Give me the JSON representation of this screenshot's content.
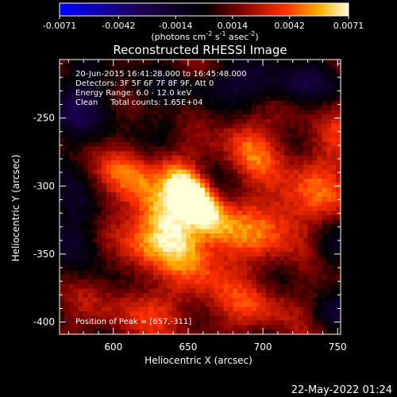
{
  "chart_data": {
    "type": "heatmap",
    "title": "Reconstructed RHESSI Image",
    "xlabel": "Heliocentric X (arcsec)",
    "ylabel": "Heliocentric Y (arcsec)",
    "xlim": [
      564,
      752
    ],
    "ylim": [
      -409,
      -207
    ],
    "x_ticks": [
      600,
      650,
      700,
      750
    ],
    "y_ticks": [
      -250,
      -300,
      -350,
      -400
    ],
    "colorbar": {
      "min": -0.0071,
      "max": 0.0071,
      "ticks": [
        "-0.0071",
        "-0.0042",
        "-0.0014",
        "0.0014",
        "0.0042",
        "0.0071"
      ],
      "unit_text": "(photons cm",
      "unit_sup1": "-2",
      "unit_mid": " s",
      "unit_sup2": "-1",
      "unit_end": " asec",
      "unit_sup3": "-2",
      "unit_close": ")"
    },
    "annotations": [
      "20-Jun-2015 16:41:28.000 to 16:45:48.000",
      "Detectors: 3F 5F 6F 7F 8F 9F, Att 0",
      "Energy Range: 6.0 - 12.0 keV",
      "Clean     Total counts: 1.65E+04"
    ],
    "peak_label": "Position of Peak = [657,-311]",
    "peak": {
      "x": 657,
      "y": -311,
      "value": 0.0071
    },
    "sources": [
      {
        "x": 655,
        "y": -308,
        "sx": 9,
        "sy": 20,
        "angle": -35,
        "amp": 0.0071
      },
      {
        "x": 640,
        "y": -330,
        "sx": 14,
        "sy": 32,
        "angle": -35,
        "amp": 0.0045
      },
      {
        "x": 625,
        "y": -350,
        "sx": 16,
        "sy": 26,
        "angle": -30,
        "amp": 0.0032
      },
      {
        "x": 690,
        "y": -270,
        "sx": 12,
        "sy": 18,
        "angle": -30,
        "amp": 0.003
      },
      {
        "x": 700,
        "y": -330,
        "sx": 35,
        "sy": 18,
        "angle": -20,
        "amp": 0.0024
      },
      {
        "x": 610,
        "y": -290,
        "sx": 12,
        "sy": 14,
        "angle": 0,
        "amp": 0.0022
      },
      {
        "x": 735,
        "y": -290,
        "sx": 14,
        "sy": 35,
        "angle": 20,
        "amp": 0.0022
      },
      {
        "x": 620,
        "y": -390,
        "sx": 25,
        "sy": 14,
        "angle": 0,
        "amp": 0.0018
      },
      {
        "x": 700,
        "y": -390,
        "sx": 18,
        "sy": 12,
        "angle": 0,
        "amp": 0.002
      },
      {
        "x": 580,
        "y": -240,
        "sx": 20,
        "sy": 20,
        "angle": 0,
        "amp": -0.003
      },
      {
        "x": 700,
        "y": -225,
        "sx": 40,
        "sy": 12,
        "angle": 0,
        "amp": -0.0032
      },
      {
        "x": 578,
        "y": -330,
        "sx": 12,
        "sy": 25,
        "angle": 0,
        "amp": -0.0032
      },
      {
        "x": 630,
        "y": -365,
        "sx": 12,
        "sy": 14,
        "angle": 0,
        "amp": -0.0028
      },
      {
        "x": 745,
        "y": -345,
        "sx": 10,
        "sy": 16,
        "angle": 0,
        "amp": -0.003
      },
      {
        "x": 745,
        "y": -395,
        "sx": 12,
        "sy": 10,
        "angle": 0,
        "amp": -0.0026
      },
      {
        "x": 640,
        "y": -260,
        "sx": 12,
        "sy": 10,
        "angle": 0,
        "amp": -0.0015
      }
    ]
  },
  "footer": {
    "timestamp": "22-May-2022 01:24"
  }
}
